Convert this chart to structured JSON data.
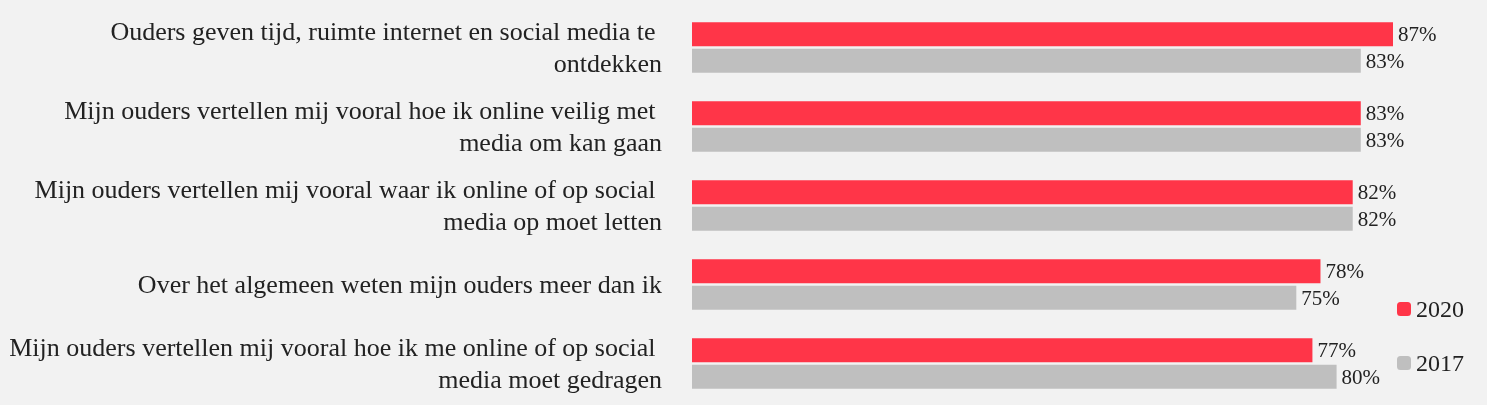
{
  "chart_data": {
    "type": "bar",
    "orientation": "horizontal",
    "categories": [
      "Ouders geven tijd, ruimte internet en social media te ontdekken",
      "Mijn ouders vertellen mij vooral hoe ik online veilig met media om kan gaan",
      "Mijn ouders vertellen mij vooral waar ik online of op social media op moet letten",
      "Over het algemeen weten mijn ouders meer dan ik",
      "Mijn ouders vertellen mij vooral hoe ik me online of op social media moet gedragen"
    ],
    "series": [
      {
        "name": "2020",
        "color": "#ff3548",
        "values": [
          87,
          83,
          82,
          78,
          77
        ],
        "value_labels": [
          "87%",
          "83%",
          "82%",
          "78%",
          "77%"
        ]
      },
      {
        "name": "2017",
        "color": "#bfbfbf",
        "values": [
          83,
          83,
          82,
          75,
          80
        ],
        "value_labels": [
          "83%",
          "83%",
          "82%",
          "75%",
          "80%"
        ]
      }
    ],
    "legend": "bottom right"
  }
}
